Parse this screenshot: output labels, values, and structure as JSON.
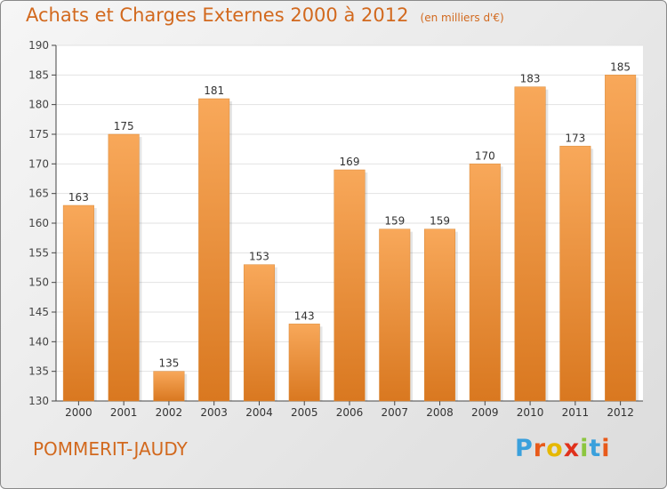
{
  "header": {
    "title": "Achats et Charges Externes 2000 à 2012",
    "subtitle": "(en milliers d'€)"
  },
  "footer": {
    "commune": "POMMERIT-JAUDY",
    "brand_letters": [
      "P",
      "r",
      "o",
      "x",
      "i",
      "t",
      "i"
    ],
    "brand_colors": [
      "#3aa0dc",
      "#e85a1a",
      "#e6b800",
      "#e0311c",
      "#8cc63f",
      "#3aa0dc",
      "#e85a1a"
    ]
  },
  "colors": {
    "bar_top": "#f8a85a",
    "bar_bottom": "#d97820",
    "text_accent": "#d2691e"
  },
  "chart_data": {
    "type": "bar",
    "title": "Achats et Charges Externes 2000 à 2012",
    "subtitle": "(en milliers d'€)",
    "categories": [
      "2000",
      "2001",
      "2002",
      "2003",
      "2004",
      "2005",
      "2006",
      "2007",
      "2008",
      "2009",
      "2010",
      "2011",
      "2012"
    ],
    "values": [
      163,
      175,
      135,
      181,
      153,
      143,
      169,
      159,
      159,
      170,
      183,
      173,
      185
    ],
    "data_labels": [
      "163",
      "175",
      "135",
      "181",
      "153",
      "143",
      "169",
      "159",
      "159",
      "170",
      "183",
      "173",
      "185"
    ],
    "ylim": [
      130,
      190
    ],
    "yticks": [
      "130",
      "135",
      "140",
      "145",
      "150",
      "155",
      "160",
      "165",
      "170",
      "175",
      "180",
      "185",
      "190"
    ],
    "grid": true,
    "legend": "none"
  }
}
